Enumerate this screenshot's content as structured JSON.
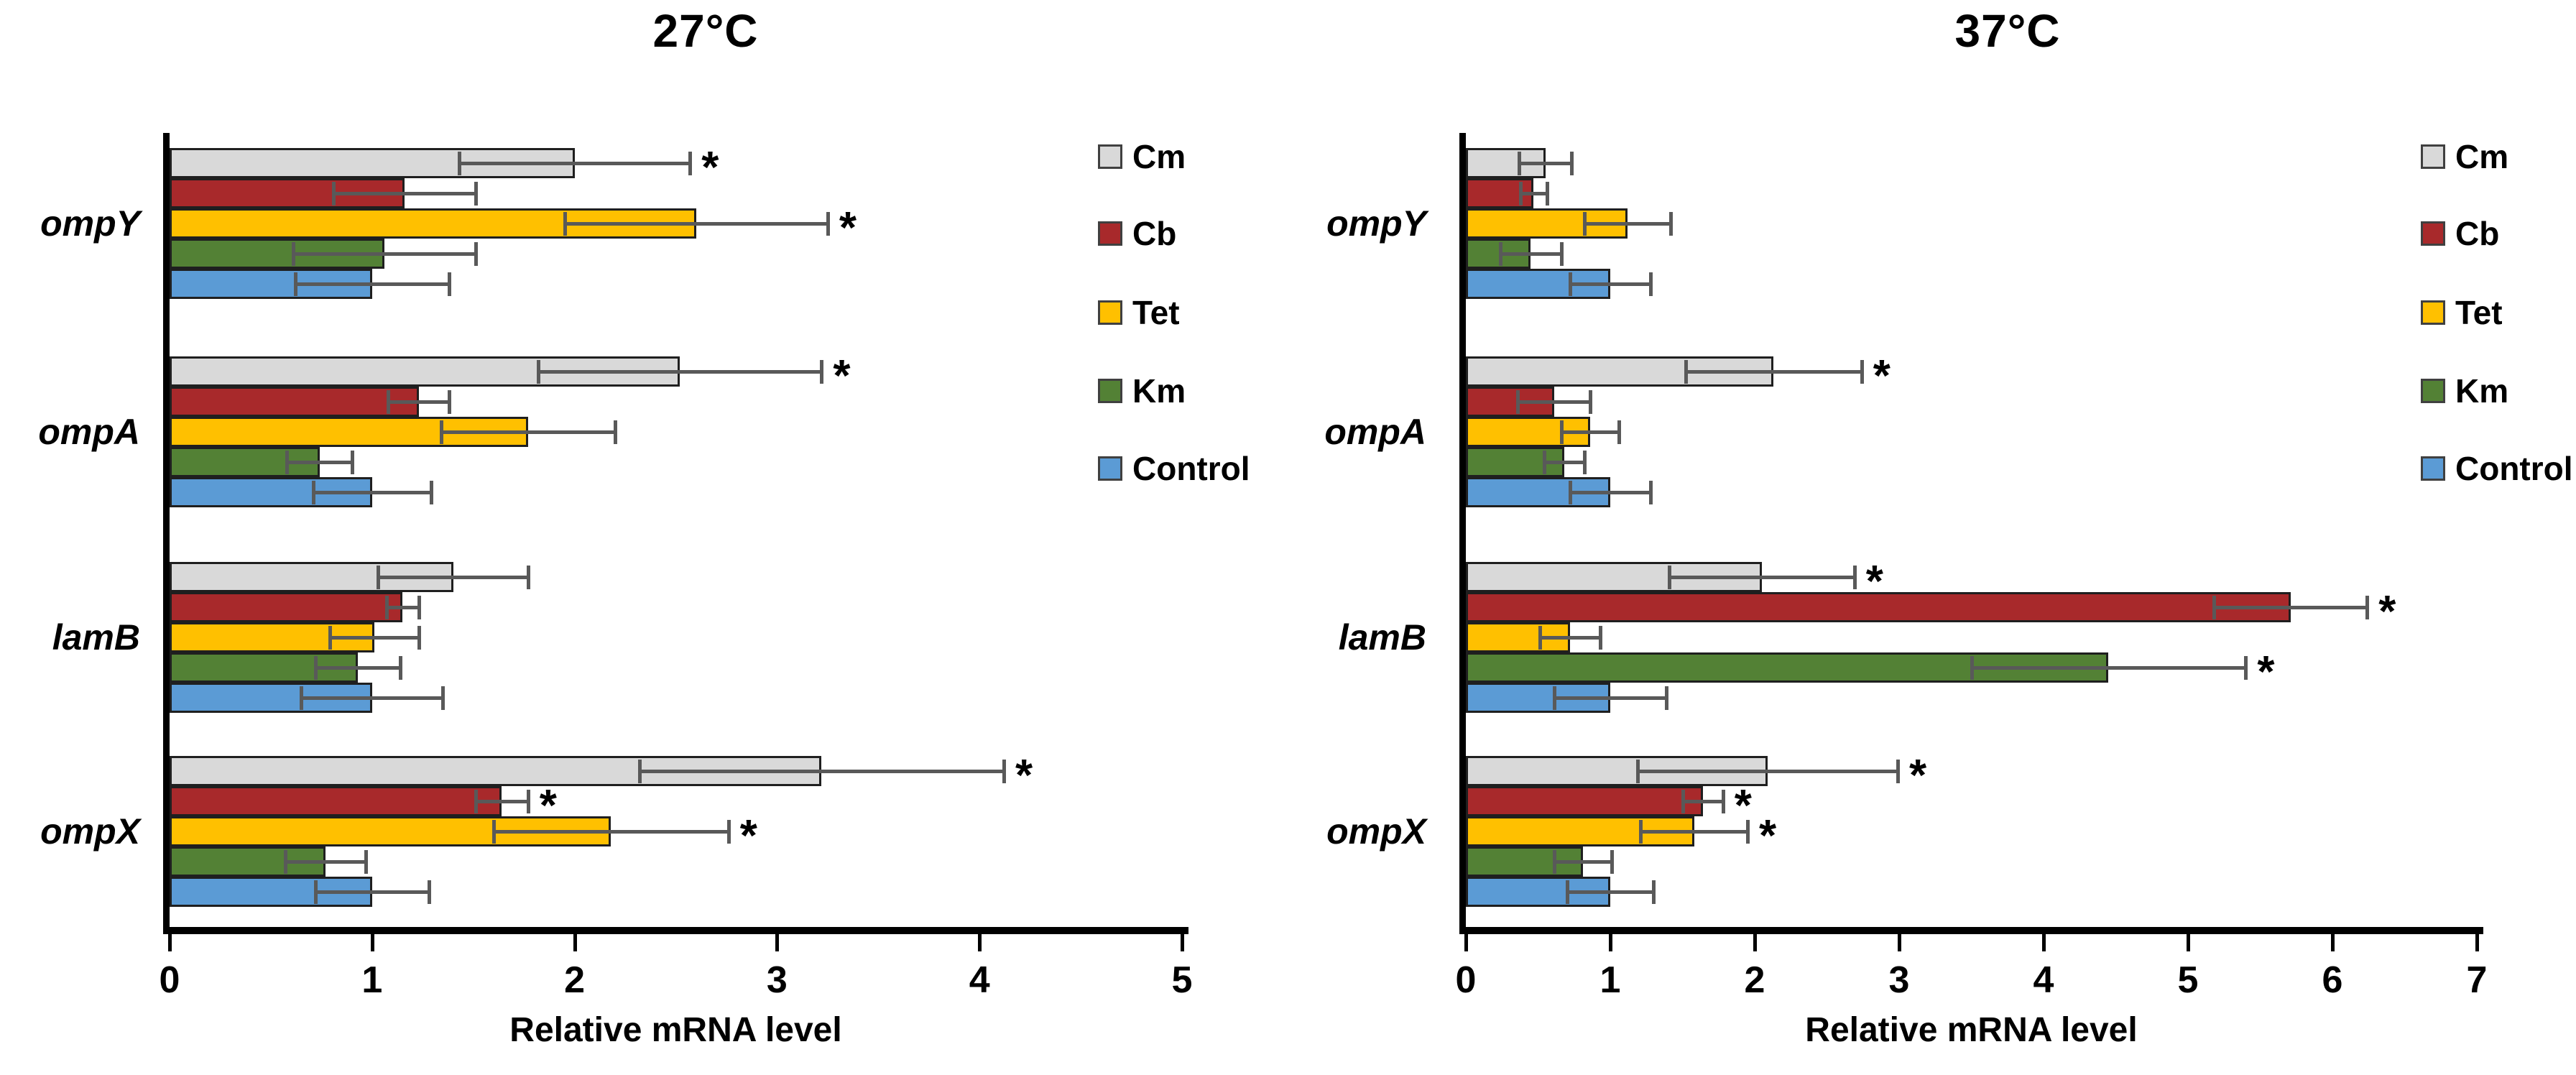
{
  "figure": {
    "background": "#FFFFFF",
    "significance_marker": "*"
  },
  "styles": {
    "bar_border_color": "#1F1F1F",
    "error_bar_color": "#595959",
    "axis_color": "#000000",
    "legend_swatch_border": "#404040"
  },
  "legend": {
    "items": [
      {
        "label": "Cm",
        "color": "#D9D9D9"
      },
      {
        "label": "Cb",
        "color": "#A8292B"
      },
      {
        "label": "Tet",
        "color": "#FFC000"
      },
      {
        "label": "Km",
        "color": "#538135"
      },
      {
        "label": "Control",
        "color": "#5B9BD5"
      }
    ]
  },
  "chart_data": [
    {
      "type": "bar",
      "orientation": "horizontal",
      "title": "27°C",
      "xlabel": "Relative mRNA level",
      "xlim": [
        0,
        5
      ],
      "xticks": [
        0,
        1,
        2,
        3,
        4,
        5
      ],
      "grid": false,
      "legend_position": "right",
      "categories": [
        "ompY",
        "ompA",
        "lamB",
        "ompX"
      ],
      "series": [
        {
          "name": "Cm",
          "color": "#D9D9D9",
          "values": [
            2.0,
            2.52,
            1.4,
            3.22
          ],
          "errors": [
            0.57,
            0.7,
            0.37,
            0.9
          ],
          "significant": [
            true,
            true,
            false,
            true
          ]
        },
        {
          "name": "Cb",
          "color": "#A8292B",
          "values": [
            1.16,
            1.23,
            1.15,
            1.64
          ],
          "errors": [
            0.35,
            0.15,
            0.08,
            0.13
          ],
          "significant": [
            false,
            false,
            false,
            true
          ]
        },
        {
          "name": "Tet",
          "color": "#FFC000",
          "values": [
            2.6,
            1.77,
            1.01,
            2.18
          ],
          "errors": [
            0.65,
            0.43,
            0.22,
            0.58
          ],
          "significant": [
            true,
            false,
            false,
            true
          ]
        },
        {
          "name": "Km",
          "color": "#538135",
          "values": [
            1.06,
            0.74,
            0.93,
            0.77
          ],
          "errors": [
            0.45,
            0.16,
            0.21,
            0.2
          ],
          "significant": [
            false,
            false,
            false,
            false
          ]
        },
        {
          "name": "Control",
          "color": "#5B9BD5",
          "values": [
            1.0,
            1.0,
            1.0,
            1.0
          ],
          "errors": [
            0.38,
            0.29,
            0.35,
            0.28
          ],
          "significant": [
            false,
            false,
            false,
            false
          ]
        }
      ]
    },
    {
      "type": "bar",
      "orientation": "horizontal",
      "title": "37°C",
      "xlabel": "Relative mRNA level",
      "xlim": [
        0,
        7
      ],
      "xticks": [
        0,
        1,
        2,
        3,
        4,
        5,
        6,
        7
      ],
      "grid": false,
      "legend_position": "right",
      "categories": [
        "ompY",
        "ompA",
        "lamB",
        "ompX"
      ],
      "series": [
        {
          "name": "Cm",
          "color": "#D9D9D9",
          "values": [
            0.55,
            2.13,
            2.05,
            2.09
          ],
          "errors": [
            0.18,
            0.61,
            0.64,
            0.9
          ],
          "significant": [
            false,
            true,
            true,
            true
          ]
        },
        {
          "name": "Cb",
          "color": "#A8292B",
          "values": [
            0.47,
            0.61,
            5.71,
            1.64
          ],
          "errors": [
            0.09,
            0.25,
            0.53,
            0.14
          ],
          "significant": [
            false,
            false,
            true,
            true
          ]
        },
        {
          "name": "Tet",
          "color": "#FFC000",
          "values": [
            1.12,
            0.86,
            0.72,
            1.58
          ],
          "errors": [
            0.3,
            0.2,
            0.21,
            0.37
          ],
          "significant": [
            false,
            false,
            false,
            true
          ]
        },
        {
          "name": "Km",
          "color": "#538135",
          "values": [
            0.45,
            0.68,
            4.45,
            0.81
          ],
          "errors": [
            0.21,
            0.14,
            0.95,
            0.2
          ],
          "significant": [
            false,
            false,
            true,
            false
          ]
        },
        {
          "name": "Control",
          "color": "#5B9BD5",
          "values": [
            1.0,
            1.0,
            1.0,
            1.0
          ],
          "errors": [
            0.28,
            0.28,
            0.39,
            0.3
          ],
          "significant": [
            false,
            false,
            false,
            false
          ]
        }
      ]
    }
  ]
}
